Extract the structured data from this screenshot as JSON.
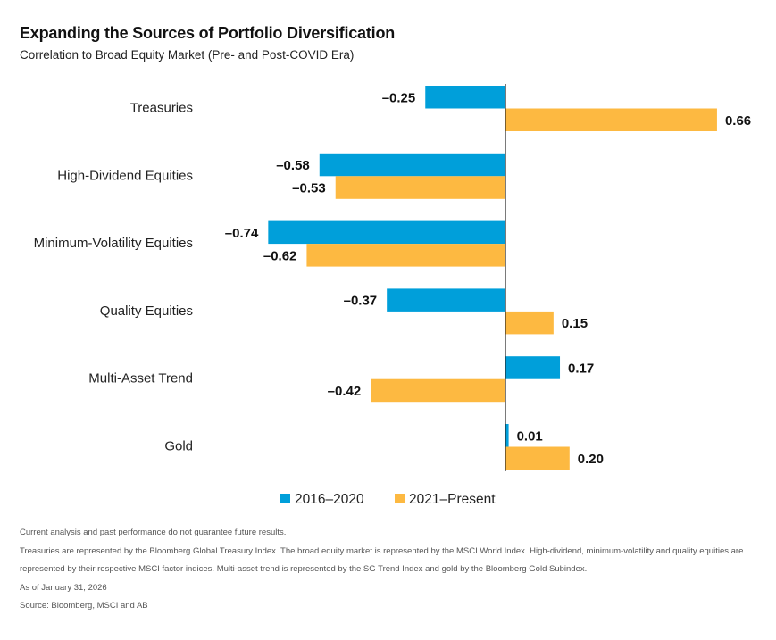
{
  "chart_data": {
    "type": "bar",
    "orientation": "horizontal",
    "title": "Expanding the Sources of Portfolio Diversification",
    "subtitle": "Correlation to Broad Equity Market (Pre- and Post-COVID Era)",
    "categories": [
      "Treasuries",
      "High-Dividend Equities",
      "Minimum-Volatility Equities",
      "Quality Equities",
      "Multi-Asset Trend",
      "Gold"
    ],
    "series": [
      {
        "name": "2016–2020",
        "color": "#009fda",
        "values": [
          -0.25,
          -0.58,
          -0.74,
          -0.37,
          0.17,
          0.01
        ],
        "labels": [
          "–0.25",
          "–0.58",
          "–0.74",
          "–0.37",
          "0.17",
          "0.01"
        ]
      },
      {
        "name": "2021–Present",
        "color": "#fdb941",
        "values": [
          0.66,
          -0.53,
          -0.62,
          0.15,
          -0.42,
          0.2
        ],
        "labels": [
          "0.66",
          "–0.53",
          "–0.62",
          "0.15",
          "–0.42",
          "0.20"
        ]
      }
    ],
    "xlim": [
      -0.74,
      0.66
    ],
    "grid": false,
    "legend_position": "bottom"
  },
  "notes": [
    "Current analysis and past performance do not guarantee future results.",
    "Treasuries are represented by the Bloomberg Global Treasury Index. The broad equity market is represented by the MSCI World Index. High-dividend, minimum-volatility and quality equities are",
    "represented by their respective MSCI factor indices. Multi-asset trend is represented by the SG Trend Index and gold by the Bloomberg Gold Subindex.",
    "As of January 31, 2026",
    "Source: Bloomberg, MSCI and AB"
  ]
}
